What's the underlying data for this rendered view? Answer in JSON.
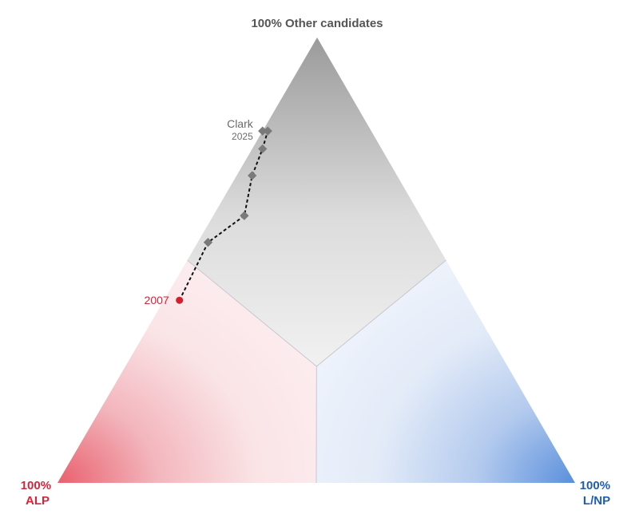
{
  "chart_data": {
    "type": "scatter",
    "subtype": "ternary",
    "corners": {
      "top": "100% Other candidates",
      "left": {
        "pct": "100%",
        "party": "ALP"
      },
      "right": {
        "pct": "100%",
        "party": "L/NP"
      }
    },
    "colors": {
      "alp": "#d6243a",
      "lnp": "#1f5cb8",
      "other": "#707070",
      "start_point": "#d11f2f",
      "marker": "#7a7a7a",
      "path": "#111111"
    },
    "series": [
      {
        "name": "Clark",
        "points": [
          {
            "label": "2007",
            "alp": 0.56,
            "lnp": 0.03,
            "other": 0.41
          },
          {
            "alp": 0.44,
            "lnp": 0.02,
            "other": 0.54
          },
          {
            "alp": 0.34,
            "lnp": 0.06,
            "other": 0.6
          },
          {
            "alp": 0.28,
            "lnp": 0.03,
            "other": 0.69
          },
          {
            "alp": 0.23,
            "lnp": 0.02,
            "other": 0.75
          },
          {
            "alp": 0.2,
            "lnp": 0.01,
            "other": 0.79
          },
          {
            "label": "2025",
            "alp": 0.21,
            "lnp": 0.0,
            "other": 0.79
          }
        ]
      }
    ],
    "end_label_name": "Clark",
    "end_label_year": "2025",
    "start_label": "2007"
  }
}
